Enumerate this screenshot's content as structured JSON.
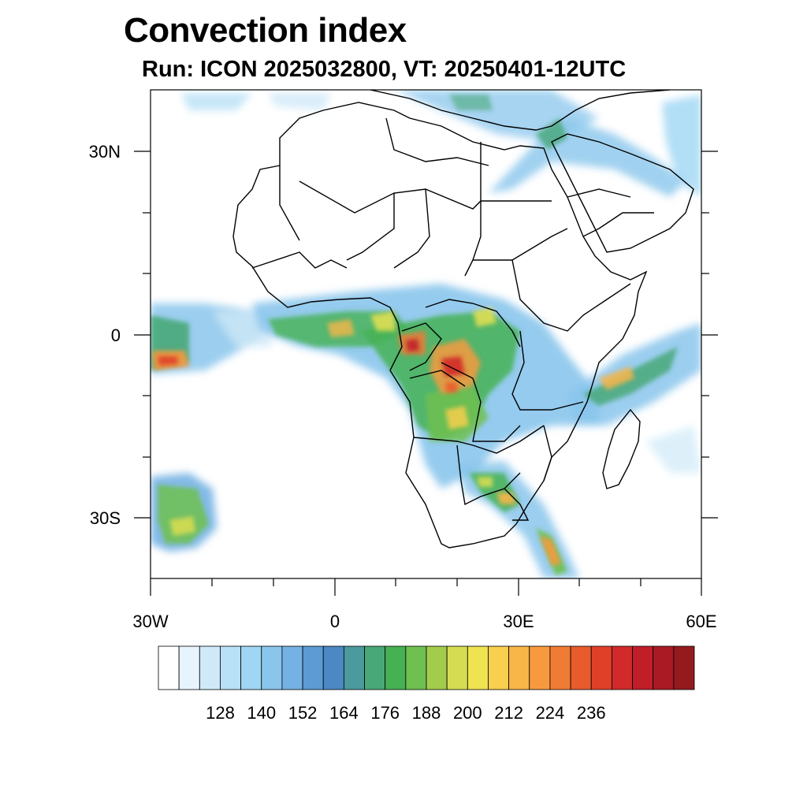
{
  "title": "Convection index",
  "subtitle": "Run: ICON 2025032800,  VT: 20250401-12UTC",
  "map": {
    "region": "Africa",
    "lon_range": [
      -30,
      60
    ],
    "lat_range": [
      -40,
      40
    ],
    "lat_tick_labels": [
      "30N",
      "0",
      "30S"
    ],
    "lon_tick_labels": [
      "30W",
      "0",
      "30E",
      "60E"
    ]
  },
  "colorbar": {
    "labels": [
      "128",
      "140",
      "152",
      "164",
      "176",
      "188",
      "200",
      "212",
      "224",
      "236"
    ],
    "colors": [
      "#ffffff",
      "#e8f4fc",
      "#cfe9f8",
      "#b8e0f6",
      "#9fd6f4",
      "#8ac5ec",
      "#75b2e3",
      "#5c9bd4",
      "#4b88c4",
      "#4a9a9e",
      "#49a878",
      "#46b153",
      "#6ec050",
      "#a4cc4c",
      "#d5dc52",
      "#f0e350",
      "#f8cf4e",
      "#f8b548",
      "#f79a3f",
      "#f07b35",
      "#e85b2c",
      "#e04028",
      "#d22a2a",
      "#c01f2a",
      "#aa1a24",
      "#951a1e"
    ]
  }
}
